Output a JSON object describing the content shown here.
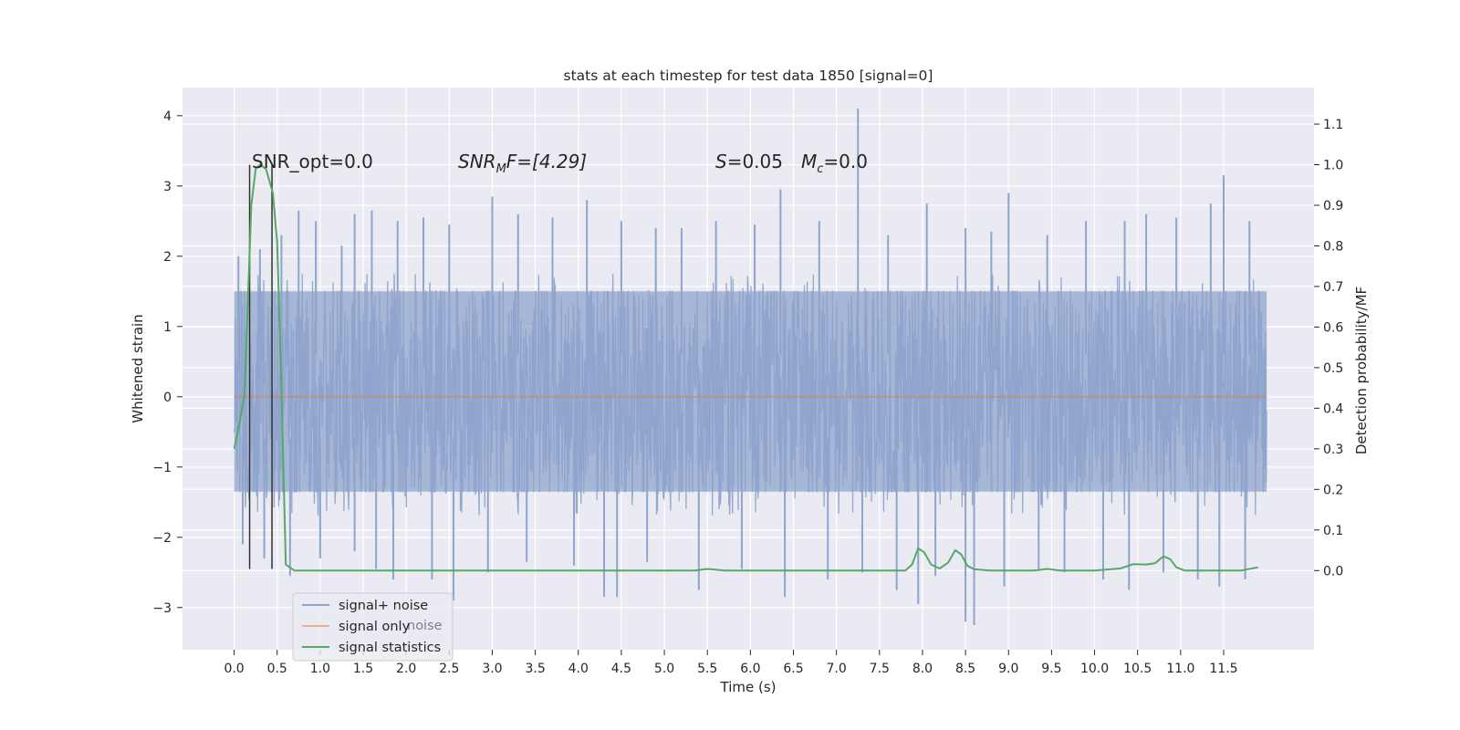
{
  "chart_data": {
    "type": "line",
    "title": "stats at each timestep for test data 1850 [signal=0]",
    "xlabel": "Time (s)",
    "ylabel_left": "Whitened strain",
    "ylabel_right": "Detection probability/MF",
    "xlim": [
      -0.6,
      12.55
    ],
    "ylim_left": [
      -3.6,
      4.4
    ],
    "ylim_right": [
      -0.195,
      1.19
    ],
    "x_ticks": [
      "0.0",
      "0.5",
      "1.0",
      "1.5",
      "2.0",
      "2.5",
      "3.0",
      "3.5",
      "4.0",
      "4.5",
      "5.0",
      "5.5",
      "6.0",
      "6.5",
      "7.0",
      "7.5",
      "8.0",
      "8.5",
      "9.0",
      "9.5",
      "10.0",
      "10.5",
      "11.0",
      "11.5"
    ],
    "y_ticks_left": [
      "4",
      "3",
      "2",
      "1",
      "0",
      "−1",
      "−2",
      "−3"
    ],
    "y_ticks_right": [
      "1.1",
      "1.0",
      "0.9",
      "0.8",
      "0.7",
      "0.6",
      "0.5",
      "0.4",
      "0.3",
      "0.2",
      "0.1",
      "0.0"
    ],
    "annotations": {
      "snr_opt": "SNR_opt=0.0",
      "snr_mf_base": "SNR",
      "snr_mf_sub": "M",
      "snr_mf_rest": "F=[4.29]",
      "s_sym": "S",
      "s_val": "=0.05",
      "mc_sym": "M",
      "mc_sub": "c",
      "mc_val": "=0.0"
    },
    "legend": {
      "placement": "lower-left",
      "entries": [
        "signal+ noise",
        "signal only",
        "signal statistics"
      ],
      "ghost_text": "noise"
    },
    "colors": {
      "background": "#eaeaf2",
      "grid": "#ffffff",
      "noise": "#8fa4cc",
      "signal": "#dd8452",
      "stats": "#55a868",
      "vline": "#333333"
    },
    "series": [
      {
        "name": "signal+ noise",
        "axis": "left",
        "x_range": [
          0.0,
          12.0
        ],
        "envelope_upper": 1.5,
        "envelope_lower": -1.35,
        "peak_spikes": [
          {
            "x": 0.05,
            "y": 2.0
          },
          {
            "x": 0.3,
            "y": 2.1
          },
          {
            "x": 0.55,
            "y": 2.3
          },
          {
            "x": 0.75,
            "y": 2.65
          },
          {
            "x": 0.95,
            "y": 2.5
          },
          {
            "x": 1.25,
            "y": 2.15
          },
          {
            "x": 1.4,
            "y": 2.6
          },
          {
            "x": 1.6,
            "y": 2.65
          },
          {
            "x": 1.9,
            "y": 2.5
          },
          {
            "x": 2.2,
            "y": 2.55
          },
          {
            "x": 2.5,
            "y": 2.45
          },
          {
            "x": 3.0,
            "y": 2.85
          },
          {
            "x": 3.3,
            "y": 2.6
          },
          {
            "x": 3.7,
            "y": 2.55
          },
          {
            "x": 4.1,
            "y": 2.8
          },
          {
            "x": 4.5,
            "y": 2.5
          },
          {
            "x": 4.9,
            "y": 2.4
          },
          {
            "x": 5.2,
            "y": 2.4
          },
          {
            "x": 5.6,
            "y": 2.5
          },
          {
            "x": 6.05,
            "y": 2.45
          },
          {
            "x": 6.35,
            "y": 2.95
          },
          {
            "x": 6.8,
            "y": 2.5
          },
          {
            "x": 7.25,
            "y": 4.1
          },
          {
            "x": 7.6,
            "y": 2.3
          },
          {
            "x": 8.05,
            "y": 2.75
          },
          {
            "x": 8.5,
            "y": 2.4
          },
          {
            "x": 8.8,
            "y": 2.35
          },
          {
            "x": 9.0,
            "y": 2.9
          },
          {
            "x": 9.45,
            "y": 2.3
          },
          {
            "x": 9.9,
            "y": 2.5
          },
          {
            "x": 10.35,
            "y": 2.5
          },
          {
            "x": 10.6,
            "y": 2.6
          },
          {
            "x": 10.95,
            "y": 2.55
          },
          {
            "x": 11.35,
            "y": 2.75
          },
          {
            "x": 11.5,
            "y": 3.15
          },
          {
            "x": 11.8,
            "y": 2.5
          }
        ],
        "trough_spikes": [
          {
            "x": 0.1,
            "y": -2.1
          },
          {
            "x": 0.35,
            "y": -2.3
          },
          {
            "x": 0.65,
            "y": -2.55
          },
          {
            "x": 1.0,
            "y": -2.3
          },
          {
            "x": 1.4,
            "y": -2.2
          },
          {
            "x": 1.65,
            "y": -2.45
          },
          {
            "x": 1.85,
            "y": -2.6
          },
          {
            "x": 2.3,
            "y": -2.6
          },
          {
            "x": 2.55,
            "y": -2.9
          },
          {
            "x": 2.95,
            "y": -2.5
          },
          {
            "x": 3.4,
            "y": -2.35
          },
          {
            "x": 3.95,
            "y": -2.4
          },
          {
            "x": 4.3,
            "y": -2.85
          },
          {
            "x": 4.45,
            "y": -2.85
          },
          {
            "x": 4.8,
            "y": -2.35
          },
          {
            "x": 5.4,
            "y": -2.75
          },
          {
            "x": 5.9,
            "y": -2.45
          },
          {
            "x": 6.4,
            "y": -2.85
          },
          {
            "x": 6.9,
            "y": -2.6
          },
          {
            "x": 7.3,
            "y": -2.5
          },
          {
            "x": 7.7,
            "y": -2.75
          },
          {
            "x": 7.95,
            "y": -2.95
          },
          {
            "x": 8.15,
            "y": -2.55
          },
          {
            "x": 8.5,
            "y": -3.2
          },
          {
            "x": 8.6,
            "y": -3.25
          },
          {
            "x": 8.95,
            "y": -2.7
          },
          {
            "x": 9.35,
            "y": -2.45
          },
          {
            "x": 9.65,
            "y": -2.5
          },
          {
            "x": 10.1,
            "y": -2.6
          },
          {
            "x": 10.4,
            "y": -2.75
          },
          {
            "x": 10.8,
            "y": -2.5
          },
          {
            "x": 11.2,
            "y": -2.6
          },
          {
            "x": 11.45,
            "y": -2.7
          },
          {
            "x": 11.75,
            "y": -2.6
          }
        ]
      },
      {
        "name": "signal only",
        "axis": "left",
        "x": [
          0.0,
          12.0
        ],
        "y": [
          0.0,
          0.0
        ]
      },
      {
        "name": "signal statistics",
        "axis": "right",
        "x": [
          0.0,
          0.05,
          0.12,
          0.2,
          0.25,
          0.3,
          0.37,
          0.45,
          0.5,
          0.55,
          0.6,
          0.7,
          0.8,
          2.0,
          3.0,
          4.0,
          5.0,
          5.35,
          5.5,
          5.7,
          6.0,
          7.0,
          7.8,
          7.88,
          7.95,
          8.02,
          8.1,
          8.2,
          8.3,
          8.38,
          8.45,
          8.52,
          8.6,
          8.8,
          9.3,
          9.45,
          9.6,
          10.0,
          10.3,
          10.45,
          10.6,
          10.7,
          10.8,
          10.88,
          10.95,
          11.05,
          11.3,
          11.7,
          11.9
        ],
        "y": [
          0.3,
          0.35,
          0.43,
          0.9,
          0.99,
          1.0,
          0.99,
          0.93,
          0.81,
          0.45,
          0.015,
          0.0,
          0.0,
          0.0,
          0.0,
          0.0,
          0.0,
          0.0,
          0.004,
          0.0,
          0.0,
          0.0,
          0.0,
          0.015,
          0.055,
          0.045,
          0.015,
          0.005,
          0.02,
          0.05,
          0.04,
          0.012,
          0.003,
          0.0,
          0.0,
          0.004,
          0.0,
          0.0,
          0.005,
          0.016,
          0.015,
          0.018,
          0.035,
          0.028,
          0.008,
          0.0,
          0.0,
          0.0,
          0.008
        ]
      }
    ],
    "vertical_markers": [
      {
        "x": 0.18,
        "y_top": 3.3,
        "y_bottom": -2.45
      },
      {
        "x": 0.44,
        "y_top": 3.3,
        "y_bottom": -2.45
      }
    ]
  }
}
